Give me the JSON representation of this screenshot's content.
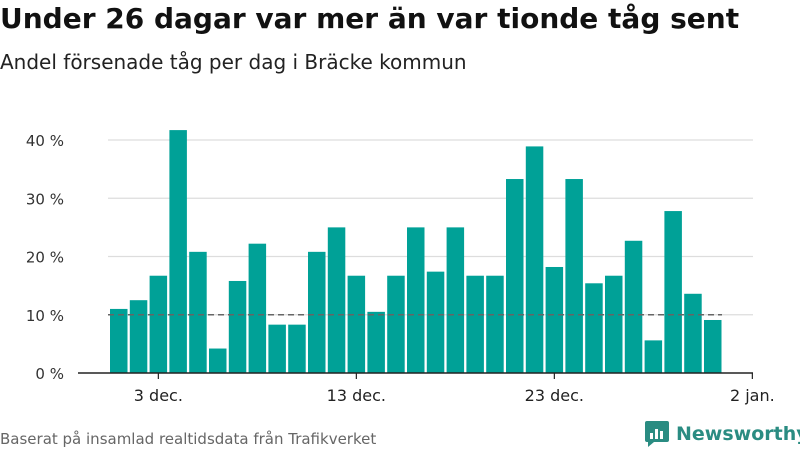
{
  "chart_data": {
    "type": "bar",
    "title": "Under 26 dagar var mer än var tionde tåg sent",
    "subtitle": "Andel försenade tåg per dag i Bräcke kommun",
    "x_tick_labels": [
      "3 dec.",
      "13 dec.",
      "23 dec.",
      "2 jan."
    ],
    "y_tick_labels": [
      "0 %",
      "10 %",
      "20 %",
      "30 %",
      "40 %"
    ],
    "ylim": [
      0,
      45
    ],
    "values": [
      11,
      12.5,
      16.7,
      41.7,
      20.8,
      4.2,
      15.8,
      22.2,
      8.3,
      8.3,
      20.8,
      25,
      16.7,
      10.5,
      16.7,
      25,
      17.4,
      25,
      16.7,
      16.7,
      33.3,
      38.9,
      18.2,
      33.3,
      15.4,
      16.7,
      22.7,
      5.6,
      27.8,
      13.6,
      9.1
    ],
    "reference_value": 10,
    "grid": true,
    "colors": {
      "bar": "#00a197",
      "grid": "#dddddd",
      "reference": "#666666",
      "axis": "#222222"
    }
  },
  "footer": {
    "source": "Baserat på insamlad realtidsdata från Trafikverket"
  },
  "brand": {
    "name": "Newsworthy",
    "icon": "newsworthy-logo-icon"
  }
}
